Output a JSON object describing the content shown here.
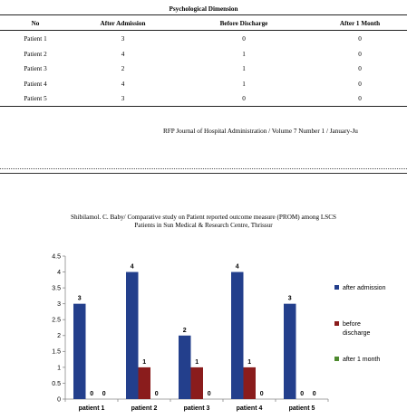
{
  "table": {
    "caption": "Psychological Dimension",
    "headers": [
      "No",
      "After Admission",
      "Before Discharge",
      "After 1 Month"
    ],
    "rows": [
      [
        "Patient 1",
        "3",
        "0",
        "0"
      ],
      [
        "Patient 2",
        "4",
        "1",
        "0"
      ],
      [
        "Patient 3",
        "2",
        "1",
        "0"
      ],
      [
        "Patient 4",
        "4",
        "1",
        "0"
      ],
      [
        "Patient 5",
        "3",
        "0",
        "0"
      ]
    ]
  },
  "journal_line": "RFP Journal of Hospital Administration / Volume 7 Number 1 / January-Ju",
  "running_head": {
    "line1": "Shibilamol. C. Baby/ Comparative study on Patient reported outcome measure (PROM) among LSCS",
    "line2": "Patients in Sun Medical & Research Centre, Thrissur"
  },
  "chart_data": {
    "type": "bar",
    "categories": [
      "patient 1",
      "patient 2",
      "patient 3",
      "patient 4",
      "patient 5"
    ],
    "series": [
      {
        "name": "after admission",
        "values": [
          3,
          4,
          2,
          4,
          3
        ],
        "color": "#233f8c"
      },
      {
        "name": "before discharge",
        "values": [
          0,
          1,
          1,
          1,
          0
        ],
        "color": "#8a1c1c"
      },
      {
        "name": "after 1 month",
        "values": [
          0,
          0,
          0,
          0,
          0
        ],
        "color": "#4e8a2e"
      }
    ],
    "yticks": [
      "0",
      "0.5",
      "1",
      "1.5",
      "2",
      "2.5",
      "3",
      "3.5",
      "4",
      "4.5"
    ],
    "ylim": [
      0,
      4.5
    ],
    "legend_position": "right",
    "grid": false
  }
}
